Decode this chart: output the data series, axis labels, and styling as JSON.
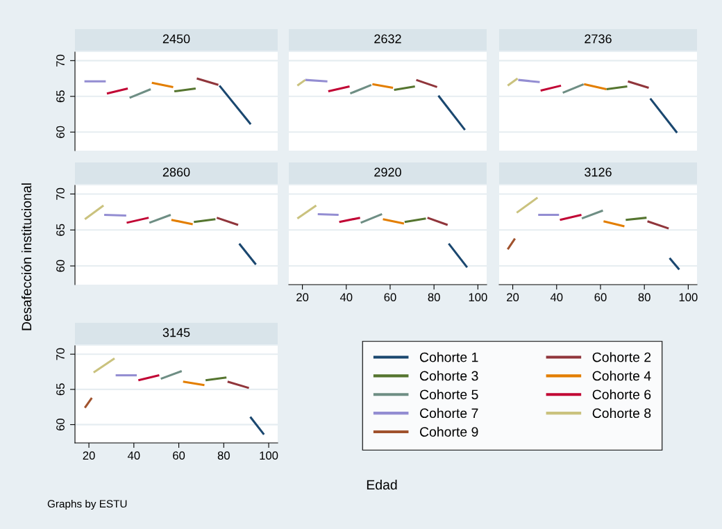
{
  "chart_data": [
    {
      "type": "line",
      "title": "2450",
      "xlim": [
        13.8,
        104
      ],
      "ylim": [
        57.4,
        71.2
      ],
      "xticks": [
        20,
        40,
        60,
        80,
        100
      ],
      "yticks": [
        60,
        65,
        70
      ],
      "grid": "y",
      "tick_labels": "y",
      "ylabel": "Desafección institucional",
      "series": [
        {
          "color": "#1a476f",
          "x": [
            78.1,
            92.0
          ],
          "values": [
            66.5,
            61.1
          ]
        },
        {
          "color": "#90353b",
          "x": [
            68.0,
            77.6
          ],
          "values": [
            67.5,
            66.6
          ]
        },
        {
          "color": "#55752f",
          "x": [
            58.0,
            67.5
          ],
          "values": [
            65.7,
            66.1
          ]
        },
        {
          "color": "#e37e00",
          "x": [
            48.0,
            57.5
          ],
          "values": [
            66.9,
            66.3
          ]
        },
        {
          "color": "#6e8e84",
          "x": [
            38.1,
            47.5
          ],
          "values": [
            64.8,
            66.0
          ]
        },
        {
          "color": "#c10534",
          "x": [
            28.0,
            37.3
          ],
          "values": [
            65.4,
            66.1
          ]
        },
        {
          "color": "#938dd2",
          "x": [
            18.0,
            27.5
          ],
          "values": [
            67.1,
            67.1
          ]
        }
      ]
    },
    {
      "type": "line",
      "title": "2632",
      "xlim": [
        13.8,
        104
      ],
      "ylim": [
        57.4,
        71.2
      ],
      "xticks": [
        20,
        40,
        60,
        80,
        100
      ],
      "yticks": [
        60,
        65,
        70
      ],
      "grid": "y",
      "tick_labels": false,
      "series": [
        {
          "color": "#1a476f",
          "x": [
            82.0,
            94.1
          ],
          "values": [
            65.1,
            60.3
          ]
        },
        {
          "color": "#90353b",
          "x": [
            71.9,
            81.4
          ],
          "values": [
            67.3,
            66.3
          ]
        },
        {
          "color": "#55752f",
          "x": [
            61.8,
            71.3
          ],
          "values": [
            65.9,
            66.4
          ]
        },
        {
          "color": "#e37e00",
          "x": [
            51.9,
            61.3
          ],
          "values": [
            66.7,
            66.2
          ]
        },
        {
          "color": "#6e8e84",
          "x": [
            41.8,
            51.4
          ],
          "values": [
            65.4,
            66.6
          ]
        },
        {
          "color": "#c10534",
          "x": [
            31.8,
            41.5
          ],
          "values": [
            65.7,
            66.4
          ]
        },
        {
          "color": "#938dd2",
          "x": [
            21.3,
            31.4
          ],
          "values": [
            67.3,
            67.1
          ]
        },
        {
          "color": "#cac27e",
          "x": [
            17.7,
            21.3
          ],
          "values": [
            66.5,
            67.3
          ]
        }
      ]
    },
    {
      "type": "line",
      "title": "2736",
      "xlim": [
        13.8,
        104
      ],
      "ylim": [
        57.4,
        71.2
      ],
      "xticks": [
        20,
        40,
        60,
        80,
        100
      ],
      "yticks": [
        60,
        65,
        70
      ],
      "grid": "y",
      "tick_labels": false,
      "series": [
        {
          "color": "#1a476f",
          "x": [
            82.7,
            94.9
          ],
          "values": [
            64.7,
            59.9
          ]
        },
        {
          "color": "#90353b",
          "x": [
            72.5,
            82.0
          ],
          "values": [
            67.1,
            66.2
          ]
        },
        {
          "color": "#55752f",
          "x": [
            62.7,
            72.2
          ],
          "values": [
            66.0,
            66.4
          ]
        },
        {
          "color": "#e37e00",
          "x": [
            52.5,
            62.7
          ],
          "values": [
            66.7,
            66.0
          ]
        },
        {
          "color": "#6e8e84",
          "x": [
            42.8,
            52.3
          ],
          "values": [
            65.5,
            66.7
          ]
        },
        {
          "color": "#c10534",
          "x": [
            32.7,
            42.0
          ],
          "values": [
            65.8,
            66.5
          ]
        },
        {
          "color": "#938dd2",
          "x": [
            22.5,
            32.3
          ],
          "values": [
            67.3,
            67.0
          ]
        },
        {
          "color": "#cac27e",
          "x": [
            17.7,
            22.2
          ],
          "values": [
            66.5,
            67.5
          ]
        }
      ]
    },
    {
      "type": "line",
      "title": "2860",
      "xlim": [
        13.8,
        104
      ],
      "ylim": [
        57.4,
        71.2
      ],
      "xticks": [
        20,
        40,
        60,
        80,
        100
      ],
      "yticks": [
        60,
        65,
        70
      ],
      "grid": "y",
      "tick_labels": "y",
      "series": [
        {
          "color": "#1a476f",
          "x": [
            86.9,
            94.3
          ],
          "values": [
            63.1,
            60.2
          ]
        },
        {
          "color": "#90353b",
          "x": [
            76.9,
            86.4
          ],
          "values": [
            66.7,
            65.7
          ]
        },
        {
          "color": "#55752f",
          "x": [
            66.7,
            76.3
          ],
          "values": [
            66.1,
            66.5
          ]
        },
        {
          "color": "#e37e00",
          "x": [
            56.7,
            66.2
          ],
          "values": [
            66.4,
            65.8
          ]
        },
        {
          "color": "#6e8e84",
          "x": [
            46.9,
            56.4
          ],
          "values": [
            66.0,
            67.1
          ]
        },
        {
          "color": "#c10534",
          "x": [
            36.8,
            46.6
          ],
          "values": [
            66.0,
            66.7
          ]
        },
        {
          "color": "#938dd2",
          "x": [
            26.8,
            36.6
          ],
          "values": [
            67.1,
            67.0
          ]
        },
        {
          "color": "#cac27e",
          "x": [
            18.2,
            26.5
          ],
          "values": [
            66.5,
            68.4
          ]
        }
      ]
    },
    {
      "type": "line",
      "title": "2920",
      "xlim": [
        13.8,
        104
      ],
      "ylim": [
        57.4,
        71.2
      ],
      "xticks": [
        20,
        40,
        60,
        80,
        100
      ],
      "yticks": [
        60,
        65,
        70
      ],
      "grid": "y",
      "tick_labels": "x",
      "xlabel": "Edad",
      "series": [
        {
          "color": "#1a476f",
          "x": [
            86.7,
            95.1
          ],
          "values": [
            63.1,
            59.8
          ]
        },
        {
          "color": "#90353b",
          "x": [
            77.0,
            86.2
          ],
          "values": [
            66.7,
            65.7
          ]
        },
        {
          "color": "#55752f",
          "x": [
            66.6,
            76.3
          ],
          "values": [
            66.1,
            66.6
          ]
        },
        {
          "color": "#e37e00",
          "x": [
            56.7,
            66.3
          ],
          "values": [
            66.5,
            65.9
          ]
        },
        {
          "color": "#6e8e84",
          "x": [
            46.6,
            56.3
          ],
          "values": [
            66.0,
            67.2
          ]
        },
        {
          "color": "#c10534",
          "x": [
            36.8,
            46.3
          ],
          "values": [
            66.1,
            66.7
          ]
        },
        {
          "color": "#938dd2",
          "x": [
            27.0,
            36.5
          ],
          "values": [
            67.2,
            67.1
          ]
        },
        {
          "color": "#cac27e",
          "x": [
            17.7,
            26.3
          ],
          "values": [
            66.6,
            68.4
          ]
        }
      ]
    },
    {
      "type": "line",
      "title": "3126",
      "xlim": [
        13.8,
        104
      ],
      "ylim": [
        57.4,
        71.2
      ],
      "xticks": [
        20,
        40,
        60,
        80,
        100
      ],
      "yticks": [
        60,
        65,
        70
      ],
      "grid": "y",
      "tick_labels": "x",
      "legend": "bottom",
      "series": [
        {
          "name": "Cohorte 1",
          "color": "#1a476f",
          "x": [
            91.5,
            95.9
          ],
          "values": [
            61.1,
            59.5
          ]
        },
        {
          "name": "Cohorte 2",
          "color": "#90353b",
          "x": [
            81.4,
            91.1
          ],
          "values": [
            66.2,
            65.2
          ]
        },
        {
          "name": "Cohorte 3",
          "color": "#55752f",
          "x": [
            71.5,
            81.0
          ],
          "values": [
            66.4,
            66.7
          ]
        },
        {
          "name": "Cohorte 4",
          "color": "#e37e00",
          "x": [
            61.4,
            70.9
          ],
          "values": [
            66.2,
            65.5
          ]
        },
        {
          "name": "Cohorte 5",
          "color": "#6e8e84",
          "x": [
            51.5,
            61.1
          ],
          "values": [
            66.6,
            67.7
          ]
        },
        {
          "name": "Cohorte 6",
          "color": "#c10534",
          "x": [
            41.5,
            51.3
          ],
          "values": [
            66.4,
            67.1
          ]
        },
        {
          "name": "Cohorte 7",
          "color": "#938dd2",
          "x": [
            31.6,
            41.1
          ],
          "values": [
            67.1,
            67.1
          ]
        },
        {
          "name": "Cohorte 8",
          "color": "#cac27e",
          "x": [
            21.8,
            31.3
          ],
          "values": [
            67.4,
            69.5
          ]
        },
        {
          "name": "Cohorte 9",
          "color": "#a0522d",
          "x": [
            17.7,
            21.0
          ],
          "values": [
            62.3,
            63.8
          ]
        }
      ]
    },
    {
      "type": "line",
      "title": "3145",
      "xlim": [
        13.8,
        104
      ],
      "ylim": [
        57.4,
        71.2
      ],
      "xticks": [
        20,
        40,
        60,
        80,
        100
      ],
      "yticks": [
        60,
        65,
        70
      ],
      "grid": "y",
      "annotations": [
        "Graphs by ESTU"
      ],
      "series": [
        {
          "color": "#1a476f",
          "x": [
            91.8,
            97.9
          ],
          "values": [
            61.1,
            58.6
          ]
        },
        {
          "color": "#90353b",
          "x": [
            81.7,
            91.2
          ],
          "values": [
            66.1,
            65.2
          ]
        },
        {
          "color": "#55752f",
          "x": [
            71.9,
            81.2
          ],
          "values": [
            66.3,
            66.7
          ]
        },
        {
          "color": "#e37e00",
          "x": [
            61.9,
            71.4
          ],
          "values": [
            66.1,
            65.6
          ]
        },
        {
          "color": "#6e8e84",
          "x": [
            52.0,
            61.3
          ],
          "values": [
            66.5,
            67.6
          ]
        },
        {
          "color": "#c10534",
          "x": [
            42.0,
            51.3
          ],
          "values": [
            66.3,
            67.0
          ]
        },
        {
          "color": "#938dd2",
          "x": [
            31.9,
            41.3
          ],
          "values": [
            67.0,
            67.0
          ]
        },
        {
          "color": "#cac27e",
          "x": [
            22.1,
            31.4
          ],
          "values": [
            67.4,
            69.4
          ]
        },
        {
          "color": "#a0522d",
          "x": [
            18.2,
            21.3
          ],
          "values": [
            62.4,
            63.8
          ]
        }
      ]
    }
  ]
}
